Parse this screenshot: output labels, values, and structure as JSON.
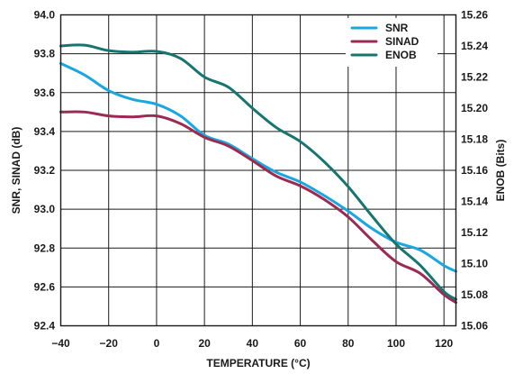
{
  "chart_data": {
    "type": "line",
    "xlabel": "TEMPERATURE (°C)",
    "ylabel_left": "SNR, SINAD (dB)",
    "ylabel_right": "ENOB (Bits)",
    "xlim": [
      -40,
      125
    ],
    "ylim_left": [
      92.4,
      94.0
    ],
    "ylim_right": [
      15.06,
      15.26
    ],
    "x_ticks": [
      "−40",
      "−20",
      "0",
      "20",
      "40",
      "60",
      "80",
      "100",
      "120"
    ],
    "x_tick_values": [
      -40,
      -20,
      0,
      20,
      40,
      60,
      80,
      100,
      120
    ],
    "y_left_ticks": [
      "92.4",
      "92.6",
      "92.8",
      "93.0",
      "93.2",
      "93.4",
      "93.6",
      "93.8",
      "94.0"
    ],
    "y_left_tick_values": [
      92.4,
      92.6,
      92.8,
      93.0,
      93.2,
      93.4,
      93.6,
      93.8,
      94.0
    ],
    "y_right_ticks": [
      "15.06",
      "15.08",
      "15.10",
      "15.12",
      "15.14",
      "15.16",
      "15.18",
      "15.20",
      "15.22",
      "15.24",
      "15.26"
    ],
    "y_right_tick_values": [
      15.06,
      15.08,
      15.1,
      15.12,
      15.14,
      15.16,
      15.18,
      15.2,
      15.22,
      15.24,
      15.26
    ],
    "grid": true,
    "legend_position": "top-right",
    "series": [
      {
        "name": "SNR",
        "axis": "left",
        "color": "#1aa7df",
        "x": [
          -40,
          -30,
          -20,
          -10,
          0,
          10,
          20,
          30,
          40,
          50,
          60,
          70,
          80,
          90,
          100,
          110,
          120,
          125
        ],
        "y": [
          93.75,
          93.69,
          93.61,
          93.565,
          93.54,
          93.48,
          93.38,
          93.335,
          93.26,
          93.19,
          93.14,
          93.07,
          92.99,
          92.9,
          92.83,
          92.79,
          92.71,
          92.68
        ]
      },
      {
        "name": "SINAD",
        "axis": "left",
        "color": "#9b2b53",
        "x": [
          -40,
          -30,
          -20,
          -10,
          0,
          10,
          20,
          30,
          40,
          50,
          60,
          70,
          80,
          90,
          100,
          110,
          120,
          125
        ],
        "y": [
          93.5,
          93.5,
          93.48,
          93.475,
          93.48,
          93.44,
          93.37,
          93.325,
          93.25,
          93.17,
          93.12,
          93.05,
          92.96,
          92.84,
          92.73,
          92.67,
          92.56,
          92.52
        ]
      },
      {
        "name": "ENOB",
        "axis": "right",
        "color": "#16756f",
        "x": [
          -40,
          -30,
          -20,
          -10,
          0,
          10,
          20,
          30,
          40,
          50,
          60,
          70,
          80,
          90,
          100,
          110,
          120,
          125
        ],
        "y": [
          15.24,
          15.2405,
          15.237,
          15.236,
          15.2365,
          15.232,
          15.22,
          15.2135,
          15.2,
          15.1875,
          15.1785,
          15.1655,
          15.1495,
          15.1305,
          15.1125,
          15.099,
          15.082,
          15.077
        ]
      }
    ]
  }
}
